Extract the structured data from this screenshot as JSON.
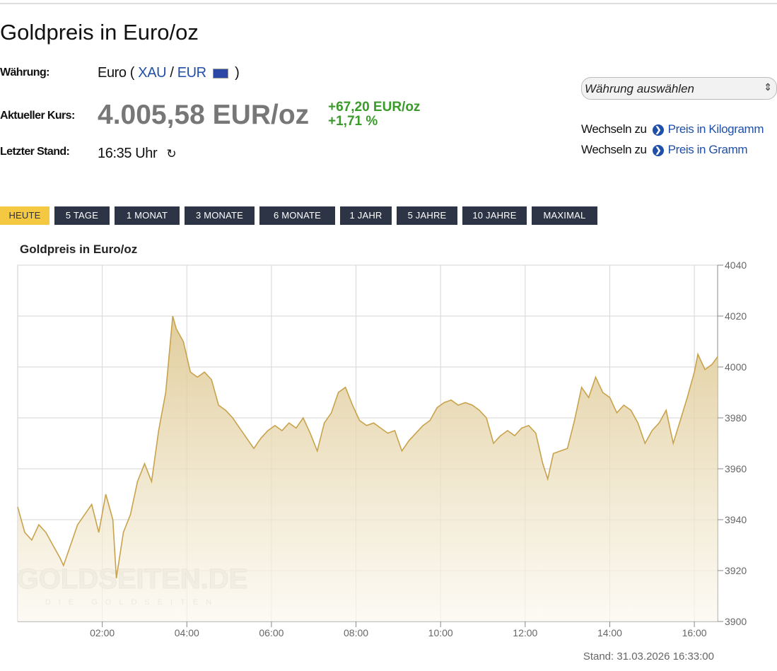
{
  "header": {
    "title": "Goldpreis in Euro/oz"
  },
  "info": {
    "currency_label": "Währung:",
    "currency_open": "Euro (",
    "xau": "XAU",
    "slash": "/",
    "eur": "EUR",
    "currency_close": ")",
    "price_label": "Aktueller Kurs:",
    "price": "4.005,58 EUR/oz",
    "change_abs": "+67,20 EUR/oz",
    "change_pct": "+1,71 %",
    "time_label": "Letzter Stand:",
    "time": "16:35 Uhr"
  },
  "currency_select": "Währung auswählen",
  "switch_links": [
    {
      "prefix": "Wechseln zu",
      "link": "Preis in Kilogramm"
    },
    {
      "prefix": "Wechseln zu",
      "link": "Preis in Gramm"
    }
  ],
  "tabs": [
    "HEUTE",
    "5 TAGE",
    "1 MONAT",
    "3 MONATE",
    "6 MONATE",
    "1 JAHR",
    "5 JAHRE",
    "10 JAHRE",
    "MAXIMAL"
  ],
  "active_tab": 0,
  "chart_data": {
    "type": "area",
    "title": "Goldpreis in Euro/oz",
    "x": [
      "00:00",
      "00:10",
      "00:20",
      "00:30",
      "00:40",
      "00:50",
      "01:00",
      "01:05",
      "01:15",
      "01:25",
      "01:35",
      "01:45",
      "01:55",
      "02:05",
      "02:15",
      "02:20",
      "02:30",
      "02:40",
      "02:50",
      "03:00",
      "03:10",
      "03:20",
      "03:30",
      "03:40",
      "03:45",
      "03:55",
      "04:05",
      "04:15",
      "04:25",
      "04:35",
      "04:45",
      "04:55",
      "05:05",
      "05:15",
      "05:25",
      "05:35",
      "05:45",
      "05:55",
      "06:05",
      "06:15",
      "06:25",
      "06:35",
      "06:45",
      "06:55",
      "07:05",
      "07:15",
      "07:25",
      "07:35",
      "07:45",
      "07:55",
      "08:05",
      "08:15",
      "08:25",
      "08:35",
      "08:45",
      "08:55",
      "09:05",
      "09:15",
      "09:25",
      "09:35",
      "09:45",
      "09:55",
      "10:05",
      "10:15",
      "10:25",
      "10:35",
      "10:45",
      "10:55",
      "11:05",
      "11:15",
      "11:25",
      "11:35",
      "11:45",
      "11:55",
      "12:05",
      "12:15",
      "12:25",
      "12:32",
      "12:40",
      "12:50",
      "13:00",
      "13:10",
      "13:20",
      "13:30",
      "13:40",
      "13:50",
      "14:00",
      "14:10",
      "14:20",
      "14:30",
      "14:40",
      "14:50",
      "15:00",
      "15:10",
      "15:20",
      "15:30",
      "15:40",
      "15:50",
      "16:00",
      "16:05",
      "16:15",
      "16:25",
      "16:33"
    ],
    "values": [
      3945,
      3935,
      3932,
      3938,
      3935,
      3930,
      3925,
      3922,
      3930,
      3938,
      3942,
      3946,
      3935,
      3950,
      3940,
      3917,
      3935,
      3942,
      3955,
      3962,
      3955,
      3975,
      3990,
      4020,
      4015,
      4010,
      3998,
      3996,
      3998,
      3995,
      3985,
      3983,
      3980,
      3976,
      3972,
      3968,
      3972,
      3975,
      3977,
      3975,
      3978,
      3976,
      3980,
      3974,
      3967,
      3978,
      3982,
      3990,
      3992,
      3985,
      3979,
      3977,
      3978,
      3976,
      3974,
      3975,
      3967,
      3971,
      3974,
      3977,
      3979,
      3984,
      3986,
      3987,
      3985,
      3986,
      3985,
      3983,
      3980,
      3970,
      3973,
      3975,
      3973,
      3976,
      3977,
      3974,
      3962,
      3956,
      3966,
      3967,
      3968,
      3979,
      3992,
      3988,
      3996,
      3990,
      3988,
      3982,
      3985,
      3983,
      3978,
      3970,
      3975,
      3978,
      3983,
      3970,
      3979,
      3988,
      3998,
      4005,
      3999,
      4001,
      4004
    ],
    "color": "#c9a24c",
    "xlim": [
      "00:00",
      "16:33"
    ],
    "xticks": [
      "02:00",
      "04:00",
      "06:00",
      "08:00",
      "10:00",
      "12:00",
      "14:00",
      "16:00"
    ],
    "ylim": [
      3900,
      4040
    ],
    "yticks": [
      3900,
      3920,
      3940,
      3960,
      3980,
      4000,
      4020,
      4040
    ],
    "grid": true,
    "watermark": "GOLDSEITEN.DE",
    "watermark_sub": "DIE GOLDSEITEN",
    "stand": "Stand: 31.03.2026 16:33:00"
  }
}
